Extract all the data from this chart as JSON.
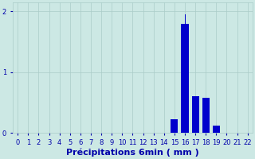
{
  "categories": [
    0,
    1,
    2,
    3,
    4,
    5,
    6,
    7,
    8,
    9,
    10,
    11,
    12,
    13,
    14,
    15,
    16,
    17,
    18,
    19,
    20,
    21,
    22
  ],
  "values": [
    0,
    0,
    0,
    0,
    0,
    0,
    0,
    0,
    0,
    0,
    0,
    0,
    0,
    0,
    0,
    0.22,
    1.8,
    0.6,
    0.58,
    0.12,
    0,
    0,
    0
  ],
  "spike_x": 16,
  "spike_value": 1.95,
  "bar_color": "#0000cc",
  "background_color": "#cce8e4",
  "grid_color": "#aaccc8",
  "text_color": "#0000aa",
  "xlabel": "Précipitations 6min ( mm )",
  "ylim": [
    0,
    2.15
  ],
  "yticks": [
    0,
    1,
    2
  ],
  "xlim": [
    -0.5,
    22.5
  ],
  "xlabel_fontsize": 8,
  "tick_fontsize": 6,
  "bar_width": 0.7
}
